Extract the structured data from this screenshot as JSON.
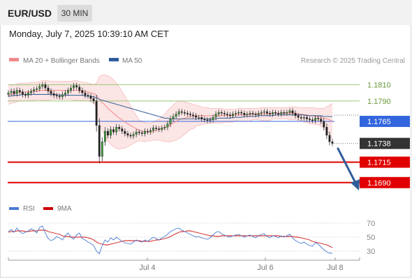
{
  "header": {
    "symbol": "EUR/USD",
    "timeframe": "30 MIN"
  },
  "datetime": "Monday, July 7, 2025 10:39:10 AM CET",
  "legend": {
    "ma20_label": "MA 20 + Bollinger Bands",
    "ma50_label": "MA 50",
    "copyright": "Research © 2025 Trading Central"
  },
  "indicator_legend": {
    "rsi_label": "RSI",
    "ma9_label": "9MA"
  },
  "colors": {
    "bollinger": "#f08a8a",
    "ma50": "#2e5c99",
    "support": "#e00000",
    "resistance": "#9cc77a",
    "pivot": "#3366dd",
    "last": "#333333",
    "arrow": "#2e5c99",
    "rsi": "#4a7bd0",
    "rsi_ma": "#cc0000"
  },
  "chart_data": [
    {
      "type": "candlestick",
      "title": "EUR/USD",
      "ylim": [
        1.1671,
        1.183
      ],
      "x_ticks": [
        "Jul 4",
        "Jul 6",
        "Jul 8"
      ],
      "levels": [
        {
          "label": "1.1810",
          "value": 1.181,
          "kind": "resistance"
        },
        {
          "label": "1.1790",
          "value": 1.179,
          "kind": "resistance"
        },
        {
          "label": "1.1765",
          "value": 1.1765,
          "kind": "pivot"
        },
        {
          "label": "1.1738",
          "value": 1.1738,
          "kind": "last"
        },
        {
          "label": "1.1715",
          "value": 1.1715,
          "kind": "support"
        },
        {
          "label": "1.1690",
          "value": 1.169,
          "kind": "support"
        }
      ],
      "close": [
        1.18,
        1.1802,
        1.1799,
        1.1803,
        1.1801,
        1.1798,
        1.1797,
        1.18,
        1.1802,
        1.1804,
        1.1805,
        1.1808,
        1.181,
        1.1806,
        1.1802,
        1.1799,
        1.1797,
        1.1796,
        1.1795,
        1.1798,
        1.18,
        1.1803,
        1.1806,
        1.1809,
        1.1807,
        1.1803,
        1.18,
        1.1797,
        1.1796,
        1.1793,
        1.179,
        1.176,
        1.1722,
        1.174,
        1.1753,
        1.1748,
        1.1755,
        1.1752,
        1.1758,
        1.1756,
        1.1753,
        1.175,
        1.1748,
        1.1747,
        1.1749,
        1.1752,
        1.1751,
        1.175,
        1.1753,
        1.1752,
        1.1754,
        1.1757,
        1.1756,
        1.1755,
        1.1757,
        1.1758,
        1.1762,
        1.1768,
        1.1771,
        1.1774,
        1.1777,
        1.1776,
        1.1775,
        1.1774,
        1.1773,
        1.1772,
        1.177,
        1.177,
        1.1768,
        1.1767,
        1.1766,
        1.1767,
        1.177,
        1.1774,
        1.1776,
        1.1775,
        1.1774,
        1.1773,
        1.1772,
        1.1774,
        1.1775,
        1.1776,
        1.1775,
        1.1773,
        1.1774,
        1.1775,
        1.1774,
        1.1773,
        1.1775,
        1.1776,
        1.1777,
        1.1775,
        1.1774,
        1.1776,
        1.1775,
        1.1774,
        1.1776,
        1.1775,
        1.1776,
        1.1778,
        1.1775,
        1.1772,
        1.177,
        1.1769,
        1.177,
        1.1768,
        1.1767,
        1.1766,
        1.1769,
        1.1768,
        1.1765,
        1.1758,
        1.1748,
        1.174,
        1.1738
      ],
      "ma20": [
        1.1797,
        1.1798,
        1.1799,
        1.18,
        1.1801,
        1.1801,
        1.1801,
        1.1801,
        1.1802,
        1.1802,
        1.1802,
        1.1803,
        1.1803,
        1.1803,
        1.1803,
        1.1803,
        1.1803,
        1.1803,
        1.1803,
        1.1803,
        1.1803,
        1.1803,
        1.1803,
        1.1803,
        1.1803,
        1.1802,
        1.1802,
        1.1802,
        1.1801,
        1.18,
        1.1799,
        1.1797,
        1.1792,
        1.1788,
        1.1785,
        1.1781,
        1.1778,
        1.1775,
        1.1772,
        1.1769,
        1.1767,
        1.1764,
        1.1762,
        1.176,
        1.1758,
        1.1756,
        1.1754,
        1.1753,
        1.1752,
        1.1752,
        1.1752,
        1.1753,
        1.1754,
        1.1755,
        1.1756,
        1.1757,
        1.1759,
        1.1761,
        1.1763,
        1.1765,
        1.1767,
        1.1768,
        1.1769,
        1.177,
        1.1771,
        1.1771,
        1.1772,
        1.1772,
        1.1772,
        1.1772,
        1.1772,
        1.1772,
        1.1772,
        1.1772,
        1.1772,
        1.1772,
        1.1772,
        1.1772,
        1.1772,
        1.1772,
        1.1773,
        1.1773,
        1.1773,
        1.1773,
        1.1773,
        1.1773,
        1.1774,
        1.1774,
        1.1774,
        1.1774,
        1.1774,
        1.1774,
        1.1774,
        1.1775,
        1.1775,
        1.1775,
        1.1775,
        1.1775,
        1.1775,
        1.1775,
        1.1775,
        1.1775,
        1.1774,
        1.1774,
        1.1773,
        1.1773,
        1.1772,
        1.1772,
        1.1771,
        1.1771,
        1.177,
        1.1769,
        1.1768,
        1.1767,
        1.1765
      ],
      "ma50": [
        1.1796,
        1.1796,
        1.1797,
        1.1797,
        1.1797,
        1.1798,
        1.1798,
        1.1798,
        1.1798,
        1.1798,
        1.1798,
        1.1798,
        1.1798,
        1.1798,
        1.1798,
        1.1798,
        1.1798,
        1.1798,
        1.1797,
        1.1797,
        1.1797,
        1.1797,
        1.1797,
        1.1797,
        1.1797,
        1.1797,
        1.1797,
        1.1796,
        1.1796,
        1.1796,
        1.1795,
        1.1794,
        1.1792,
        1.1791,
        1.179,
        1.1789,
        1.1788,
        1.1787,
        1.1786,
        1.1785,
        1.1784,
        1.1783,
        1.1782,
        1.1781,
        1.178,
        1.1779,
        1.1778,
        1.1777,
        1.1776,
        1.1775,
        1.1774,
        1.1773,
        1.1772,
        1.1771,
        1.177,
        1.1769,
        1.1769,
        1.1768,
        1.1768,
        1.1768,
        1.1768,
        1.1768,
        1.1768,
        1.1768,
        1.1768,
        1.1768,
        1.1768,
        1.1768,
        1.1768,
        1.1768,
        1.1768,
        1.1768,
        1.1768,
        1.1768,
        1.1769,
        1.1769,
        1.1769,
        1.1769,
        1.1769,
        1.177,
        1.177,
        1.177,
        1.177,
        1.1771,
        1.1771,
        1.1771,
        1.1771,
        1.1771,
        1.1772,
        1.1772,
        1.1772,
        1.1772,
        1.1772,
        1.1772,
        1.1773,
        1.1773,
        1.1773,
        1.1773,
        1.1773,
        1.1773,
        1.1773,
        1.1773,
        1.1773,
        1.1773,
        1.1773,
        1.1772,
        1.1772,
        1.1772,
        1.1772,
        1.1772,
        1.1772,
        1.1771,
        1.1771,
        1.1771,
        1.1771
      ],
      "bb_upper": [
        1.1808,
        1.1809,
        1.181,
        1.1811,
        1.1812,
        1.1812,
        1.1812,
        1.1812,
        1.1813,
        1.1813,
        1.1813,
        1.1814,
        1.1815,
        1.1815,
        1.1815,
        1.1814,
        1.1814,
        1.1814,
        1.1814,
        1.1814,
        1.1814,
        1.1814,
        1.1814,
        1.1815,
        1.1815,
        1.1814,
        1.1813,
        1.1813,
        1.1812,
        1.1811,
        1.181,
        1.1812,
        1.182,
        1.1822,
        1.1822,
        1.1821,
        1.1819,
        1.1816,
        1.1812,
        1.1807,
        1.1802,
        1.1796,
        1.179,
        1.1784,
        1.1778,
        1.1772,
        1.1767,
        1.1765,
        1.1764,
        1.1763,
        1.1763,
        1.1764,
        1.1766,
        1.1768,
        1.1771,
        1.1774,
        1.1778,
        1.1782,
        1.1785,
        1.1788,
        1.179,
        1.179,
        1.1789,
        1.1788,
        1.1787,
        1.1786,
        1.1785,
        1.1784,
        1.1783,
        1.1782,
        1.1782,
        1.1781,
        1.1781,
        1.1781,
        1.1781,
        1.1781,
        1.178,
        1.178,
        1.178,
        1.178,
        1.178,
        1.1781,
        1.1781,
        1.1781,
        1.1781,
        1.1781,
        1.1781,
        1.1781,
        1.1781,
        1.1782,
        1.1782,
        1.1782,
        1.1782,
        1.1782,
        1.1782,
        1.1782,
        1.1782,
        1.1782,
        1.1782,
        1.1783,
        1.1783,
        1.1783,
        1.1782,
        1.1782,
        1.1782,
        1.1782,
        1.1782,
        1.1782,
        1.1781,
        1.1781,
        1.1781,
        1.1781,
        1.1783,
        1.1785,
        1.1787
      ],
      "bb_lower": [
        1.1786,
        1.1787,
        1.1788,
        1.1789,
        1.179,
        1.179,
        1.179,
        1.179,
        1.1791,
        1.1791,
        1.1791,
        1.1792,
        1.1791,
        1.1791,
        1.1791,
        1.1792,
        1.1792,
        1.1792,
        1.1792,
        1.1792,
        1.1792,
        1.1792,
        1.1792,
        1.1791,
        1.1791,
        1.179,
        1.1791,
        1.1791,
        1.179,
        1.1789,
        1.1788,
        1.1782,
        1.1764,
        1.1754,
        1.1748,
        1.1741,
        1.1737,
        1.1734,
        1.1732,
        1.1731,
        1.1732,
        1.1732,
        1.1734,
        1.1736,
        1.1738,
        1.174,
        1.1741,
        1.1741,
        1.174,
        1.1741,
        1.1741,
        1.1742,
        1.1742,
        1.1742,
        1.1741,
        1.174,
        1.174,
        1.174,
        1.1741,
        1.1742,
        1.1744,
        1.1746,
        1.1749,
        1.1752,
        1.1755,
        1.1756,
        1.1759,
        1.176,
        1.1761,
        1.1762,
        1.1762,
        1.1763,
        1.1763,
        1.1763,
        1.1763,
        1.1763,
        1.1764,
        1.1764,
        1.1764,
        1.1764,
        1.1766,
        1.1765,
        1.1765,
        1.1765,
        1.1765,
        1.1765,
        1.1767,
        1.1767,
        1.1767,
        1.1766,
        1.1766,
        1.1766,
        1.1766,
        1.1768,
        1.1768,
        1.1768,
        1.1768,
        1.1768,
        1.1768,
        1.1767,
        1.1767,
        1.1767,
        1.1766,
        1.1766,
        1.1764,
        1.1764,
        1.1762,
        1.1762,
        1.1761,
        1.1761,
        1.1759,
        1.1757,
        1.1753,
        1.1749,
        1.1743
      ]
    },
    {
      "type": "line",
      "title": "RSI",
      "ylim": [
        22,
        78
      ],
      "y_ticks": [
        "70",
        "50",
        "30"
      ],
      "series": [
        {
          "name": "RSI",
          "values": [
            58,
            61,
            57,
            63,
            58,
            55,
            57,
            59,
            62,
            60,
            56,
            64,
            66,
            56,
            48,
            45,
            47,
            51,
            49,
            46,
            52,
            56,
            50,
            47,
            53,
            56,
            48,
            46,
            43,
            41,
            38,
            30,
            26,
            38,
            46,
            43,
            49,
            46,
            50,
            47,
            44,
            42,
            41,
            40,
            43,
            46,
            44,
            43,
            46,
            44,
            47,
            50,
            48,
            46,
            49,
            51,
            54,
            58,
            60,
            62,
            63,
            60,
            58,
            56,
            54,
            52,
            50,
            51,
            49,
            48,
            47,
            49,
            53,
            57,
            58,
            55,
            53,
            51,
            50,
            52,
            53,
            54,
            52,
            50,
            52,
            53,
            51,
            49,
            52,
            54,
            55,
            51,
            49,
            52,
            51,
            49,
            52,
            50,
            52,
            54,
            49,
            45,
            43,
            41,
            43,
            40,
            38,
            37,
            42,
            40,
            36,
            32,
            29,
            27,
            27
          ]
        },
        {
          "name": "9MA",
          "values": [
            57,
            58,
            58,
            59,
            59,
            59,
            58,
            58,
            59,
            59,
            59,
            60,
            60,
            60,
            58,
            57,
            56,
            55,
            54,
            52,
            51,
            51,
            50,
            50,
            50,
            50,
            50,
            50,
            49,
            48,
            46,
            43,
            41,
            40,
            39,
            39,
            40,
            41,
            42,
            43,
            44,
            45,
            45,
            45,
            45,
            45,
            45,
            44,
            44,
            44,
            44,
            45,
            46,
            46,
            47,
            48,
            49,
            51,
            53,
            55,
            57,
            58,
            58,
            59,
            59,
            58,
            57,
            56,
            55,
            54,
            53,
            52,
            52,
            51,
            51,
            52,
            52,
            52,
            52,
            52,
            52,
            52,
            52,
            52,
            52,
            52,
            52,
            52,
            52,
            52,
            52,
            52,
            52,
            52,
            52,
            52,
            51,
            51,
            51,
            51,
            51,
            50,
            50,
            49,
            48,
            47,
            46,
            44,
            43,
            42,
            41,
            40,
            39,
            37,
            35
          ]
        }
      ]
    }
  ]
}
